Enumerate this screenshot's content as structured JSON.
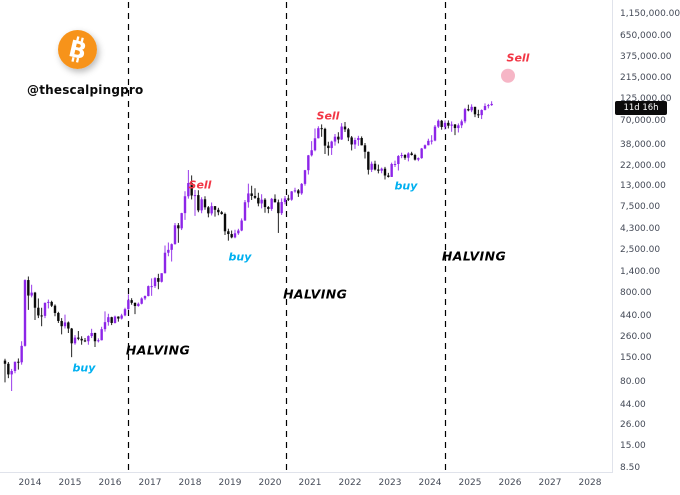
{
  "branding": {
    "handle": "@thescalpingpro",
    "logo": "bitcoin-icon"
  },
  "badge": {
    "countdown": "11d 16h"
  },
  "price_axis": {
    "ticks": [
      {
        "label": "1,150,000.00",
        "value": 1150000
      },
      {
        "label": "650,000.00",
        "value": 650000
      },
      {
        "label": "375,000.00",
        "value": 375000
      },
      {
        "label": "215,000.00",
        "value": 215000
      },
      {
        "label": "125,000.00",
        "value": 125000
      },
      {
        "label": "70,000.00",
        "value": 70000
      },
      {
        "label": "38,000.00",
        "value": 38000
      },
      {
        "label": "22,000.00",
        "value": 22000
      },
      {
        "label": "13,000.00",
        "value": 13000
      },
      {
        "label": "7,500.00",
        "value": 7500
      },
      {
        "label": "4,300.00",
        "value": 4300
      },
      {
        "label": "2,500.00",
        "value": 2500
      },
      {
        "label": "1,400.00",
        "value": 1400
      },
      {
        "label": "800.00",
        "value": 800
      },
      {
        "label": "440.00",
        "value": 440
      },
      {
        "label": "260.00",
        "value": 260
      },
      {
        "label": "150.00",
        "value": 150
      },
      {
        "label": "80.00",
        "value": 80
      },
      {
        "label": "44.00",
        "value": 44
      },
      {
        "label": "26.00",
        "value": 26
      },
      {
        "label": "15.00",
        "value": 15
      },
      {
        "label": "8.50",
        "value": 8.5
      }
    ]
  },
  "time_axis": {
    "years": [
      "2014",
      "2015",
      "2016",
      "2017",
      "2018",
      "2019",
      "2020",
      "2021",
      "2022",
      "2023",
      "2024",
      "2025",
      "2026",
      "2027",
      "2028"
    ]
  },
  "annotations": {
    "halving_lines": [
      {
        "year": 2016.46
      },
      {
        "year": 2020.41
      },
      {
        "year": 2024.38
      }
    ],
    "halving_labels": [
      {
        "text": "HALVING",
        "year": 2017.2,
        "price": 183
      },
      {
        "text": "HALVING",
        "year": 2021.13,
        "price": 790
      },
      {
        "text": "HALVING",
        "year": 2025.1,
        "price": 2100
      }
    ],
    "signals": [
      {
        "text": "buy",
        "type": "buy",
        "year": 2015.35,
        "price": 115
      },
      {
        "text": "Sell",
        "type": "sell",
        "year": 2018.25,
        "price": 13400
      },
      {
        "text": "buy",
        "type": "buy",
        "year": 2019.25,
        "price": 2050
      },
      {
        "text": "Sell",
        "type": "sell",
        "year": 2021.45,
        "price": 80000
      },
      {
        "text": "buy",
        "type": "buy",
        "year": 2023.4,
        "price": 13200
      },
      {
        "text": "Sell",
        "type": "sell",
        "year": 2026.2,
        "price": 365000
      }
    ],
    "projection_dot": {
      "year": 2025.95,
      "price": 230000
    }
  },
  "colors": {
    "bull": "#8d25e8",
    "bear": "#0a0a0a",
    "buy": "#00b0f0",
    "sell": "#f23645",
    "bitcoin_orange": "#f7931a",
    "dot_pink": "#f6b6c6",
    "halving_line": "#000000",
    "axis_text": "#444a57"
  },
  "chart_data": {
    "type": "candlestick",
    "scale": "log",
    "x_range": [
      2013.3,
      2028.8
    ],
    "y_range": [
      8.5,
      1150000
    ],
    "legend": "none",
    "grid": "off",
    "series_start": {
      "year": 2013,
      "month": 5
    },
    "interval_months": 1,
    "candles": [
      [
        139,
        146,
        79,
        128
      ],
      [
        128,
        134,
        88,
        97
      ],
      [
        97,
        112,
        63,
        106
      ],
      [
        106,
        135,
        100,
        135
      ],
      [
        135,
        147,
        110,
        133
      ],
      [
        133,
        230,
        125,
        204
      ],
      [
        204,
        1150,
        200,
        1130
      ],
      [
        1130,
        1240,
        520,
        755
      ],
      [
        755,
        1000,
        720,
        815
      ],
      [
        815,
        830,
        400,
        550
      ],
      [
        550,
        700,
        420,
        450
      ],
      [
        450,
        550,
        340,
        445
      ],
      [
        445,
        630,
        420,
        625
      ],
      [
        625,
        680,
        540,
        640
      ],
      [
        640,
        660,
        560,
        580
      ],
      [
        580,
        600,
        440,
        480
      ],
      [
        480,
        495,
        370,
        390
      ],
      [
        390,
        420,
        275,
        340
      ],
      [
        340,
        460,
        320,
        375
      ],
      [
        375,
        385,
        285,
        320
      ],
      [
        320,
        325,
        152,
        218
      ],
      [
        218,
        270,
        210,
        253
      ],
      [
        253,
        300,
        236,
        245
      ],
      [
        245,
        262,
        210,
        235
      ],
      [
        235,
        250,
        225,
        230
      ],
      [
        230,
        268,
        210,
        263
      ],
      [
        263,
        318,
        250,
        285
      ],
      [
        285,
        288,
        198,
        230
      ],
      [
        230,
        248,
        223,
        236
      ],
      [
        236,
        335,
        235,
        315
      ],
      [
        315,
        500,
        295,
        378
      ],
      [
        378,
        470,
        345,
        430
      ],
      [
        430,
        435,
        350,
        370
      ],
      [
        370,
        448,
        365,
        437
      ],
      [
        437,
        440,
        383,
        415
      ],
      [
        415,
        470,
        405,
        450
      ],
      [
        450,
        550,
        440,
        530
      ],
      [
        530,
        780,
        520,
        670
      ],
      [
        670,
        705,
        595,
        625
      ],
      [
        625,
        630,
        465,
        575
      ],
      [
        575,
        630,
        565,
        610
      ],
      [
        610,
        720,
        600,
        700
      ],
      [
        700,
        755,
        670,
        745
      ],
      [
        745,
        980,
        740,
        965
      ],
      [
        965,
        1180,
        750,
        965
      ],
      [
        965,
        1220,
        920,
        1190
      ],
      [
        1190,
        1330,
        890,
        1080
      ],
      [
        1080,
        1350,
        1060,
        1350
      ],
      [
        1350,
        2780,
        1340,
        2300
      ],
      [
        2300,
        3000,
        2100,
        2480
      ],
      [
        2480,
        2930,
        1830,
        2875
      ],
      [
        2875,
        4980,
        2840,
        4700
      ],
      [
        4700,
        4980,
        2980,
        4340
      ],
      [
        4340,
        6500,
        4150,
        6450
      ],
      [
        6450,
        11400,
        5400,
        10000
      ],
      [
        10000,
        19800,
        9400,
        14100
      ],
      [
        14100,
        17200,
        9200,
        10200
      ],
      [
        10200,
        11780,
        6000,
        10300
      ],
      [
        10300,
        11700,
        6600,
        6930
      ],
      [
        6930,
        9750,
        6430,
        9240
      ],
      [
        9240,
        9990,
        7040,
        7500
      ],
      [
        7500,
        7750,
        5780,
        6400
      ],
      [
        6400,
        8500,
        6070,
        7730
      ],
      [
        7730,
        7760,
        5880,
        7030
      ],
      [
        7030,
        7410,
        6100,
        6600
      ],
      [
        6600,
        6830,
        6200,
        6300
      ],
      [
        6300,
        6540,
        3650,
        4020
      ],
      [
        4020,
        4300,
        3150,
        3740
      ],
      [
        3740,
        4100,
        3350,
        3430
      ],
      [
        3430,
        4190,
        3350,
        3815
      ],
      [
        3815,
        4290,
        3660,
        4100
      ],
      [
        4100,
        5620,
        4030,
        5320
      ],
      [
        5320,
        9070,
        5270,
        8560
      ],
      [
        8560,
        13880,
        7430,
        10760
      ],
      [
        10760,
        13150,
        9080,
        10080
      ],
      [
        10080,
        12320,
        9350,
        9600
      ],
      [
        9600,
        10950,
        7700,
        8290
      ],
      [
        8290,
        10540,
        7290,
        9150
      ],
      [
        9150,
        9520,
        6520,
        7550
      ],
      [
        7550,
        7750,
        6430,
        7190
      ],
      [
        7190,
        9570,
        6850,
        9350
      ],
      [
        9350,
        10500,
        8520,
        8540
      ],
      [
        8540,
        9170,
        3850,
        6440
      ],
      [
        6440,
        9460,
        6140,
        8620
      ],
      [
        8620,
        10070,
        8100,
        9450
      ],
      [
        9450,
        10380,
        8830,
        9140
      ],
      [
        9140,
        11450,
        8900,
        11350
      ],
      [
        11350,
        12480,
        11000,
        11650
      ],
      [
        11650,
        12050,
        9830,
        10780
      ],
      [
        10780,
        14100,
        10380,
        13800
      ],
      [
        13800,
        19860,
        13200,
        19700
      ],
      [
        19700,
        29300,
        17600,
        29000
      ],
      [
        29000,
        41950,
        28150,
        33100
      ],
      [
        33100,
        58350,
        32300,
        45200
      ],
      [
        45200,
        61800,
        45000,
        58800
      ],
      [
        58800,
        64850,
        46950,
        57750
      ],
      [
        57750,
        59500,
        30000,
        37300
      ],
      [
        37300,
        41300,
        28800,
        35040
      ],
      [
        35040,
        42400,
        29300,
        41500
      ],
      [
        41500,
        50500,
        37300,
        47100
      ],
      [
        47100,
        52900,
        39600,
        43800
      ],
      [
        43800,
        67000,
        43300,
        61300
      ],
      [
        61300,
        69000,
        53300,
        57000
      ],
      [
        57000,
        59100,
        42000,
        46200
      ],
      [
        46200,
        47990,
        32950,
        38480
      ],
      [
        38480,
        45820,
        34320,
        43190
      ],
      [
        43190,
        48200,
        37160,
        45530
      ],
      [
        45530,
        47450,
        37580,
        37650
      ],
      [
        37650,
        40000,
        26700,
        31790
      ],
      [
        31790,
        31980,
        17600,
        19925
      ],
      [
        19925,
        24670,
        18780,
        23290
      ],
      [
        23290,
        25200,
        19520,
        20050
      ],
      [
        20050,
        22800,
        18130,
        19425
      ],
      [
        19425,
        21080,
        18190,
        20490
      ],
      [
        20490,
        21480,
        15480,
        17165
      ],
      [
        17165,
        18390,
        16260,
        16540
      ],
      [
        16540,
        23960,
        16500,
        23130
      ],
      [
        23130,
        25250,
        21400,
        23140
      ],
      [
        23140,
        29180,
        19550,
        28470
      ],
      [
        28470,
        31050,
        26940,
        29250
      ],
      [
        29250,
        29820,
        25810,
        27220
      ],
      [
        27220,
        31400,
        24800,
        30470
      ],
      [
        30470,
        31800,
        28860,
        29230
      ],
      [
        29230,
        30180,
        25350,
        25930
      ],
      [
        25930,
        27480,
        24900,
        26960
      ],
      [
        26960,
        35150,
        26540,
        34660
      ],
      [
        34660,
        38400,
        34100,
        37720
      ],
      [
        37720,
        44700,
        37620,
        42280
      ],
      [
        42280,
        48970,
        38500,
        42580
      ],
      [
        42580,
        63930,
        41880,
        61200
      ],
      [
        61200,
        73800,
        59000,
        71330
      ],
      [
        71330,
        72800,
        56500,
        60640
      ],
      [
        60640,
        71950,
        56550,
        67540
      ],
      [
        67540,
        71990,
        58400,
        62680
      ],
      [
        62680,
        70080,
        53500,
        64620
      ],
      [
        64620,
        65600,
        49100,
        58970
      ],
      [
        58970,
        66500,
        52550,
        63330
      ],
      [
        63330,
        73600,
        58900,
        70220
      ],
      [
        70220,
        99650,
        66800,
        96440
      ],
      [
        96440,
        108360,
        91200,
        93430
      ],
      [
        93430,
        109350,
        89200,
        102400
      ],
      [
        102400,
        102800,
        78250,
        84350
      ],
      [
        84350,
        95000,
        76600,
        82550
      ],
      [
        82550,
        95770,
        74500,
        94210
      ],
      [
        94210,
        112000,
        93400,
        104600
      ],
      [
        104600,
        110530,
        98300,
        107100
      ],
      [
        107100,
        118400,
        105100,
        110500
      ]
    ]
  }
}
